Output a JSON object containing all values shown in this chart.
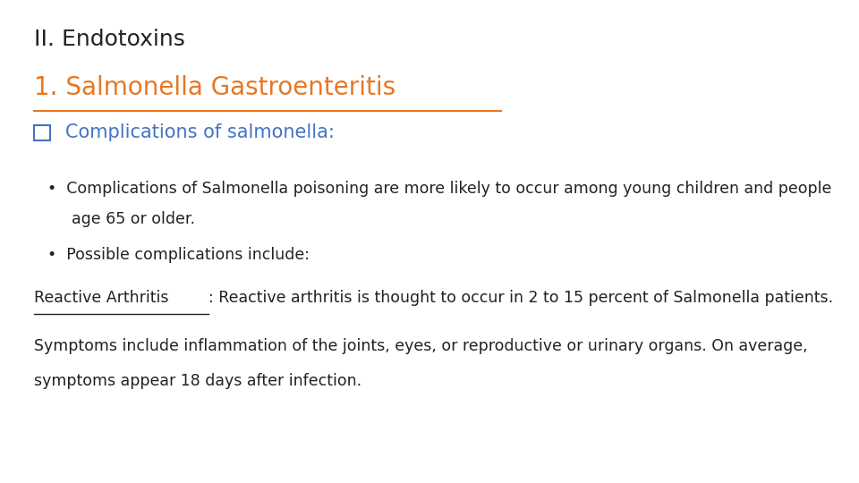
{
  "background_color": "#ffffff",
  "title_line1": "II. Endotoxins",
  "title_line2": "1. Salmonella Gastroenteritis",
  "title_line1_color": "#222222",
  "title_line2_color": "#E87722",
  "section_heading": "Complications of salmonella:",
  "section_heading_color": "#4472C4",
  "bullet1_line1": "Complications of Salmonella poisoning are more likely to occur among young children and people",
  "bullet1_line2": "age 65 or older.",
  "bullet2": "Possible complications include:",
  "reactive_label": "Reactive Arthritis",
  "reactive_rest": ": Reactive arthritis is thought to occur in 2 to 15 percent of Salmonella patients.",
  "symptoms_line1": "Symptoms include inflammation of the joints, eyes, or reproductive or urinary organs. On average,",
  "symptoms_line2": "symptoms appear 18 days after infection.",
  "text_color": "#222222",
  "font_size_title1": 18,
  "font_size_title2": 20,
  "font_size_section": 15,
  "font_size_body": 12.5
}
